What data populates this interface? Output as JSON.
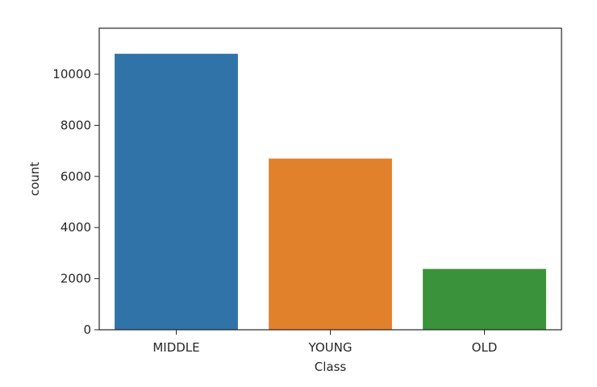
{
  "chart_data": {
    "type": "bar",
    "title": "",
    "xlabel": "Class",
    "ylabel": "count",
    "categories": [
      "MIDDLE",
      "YOUNG",
      "OLD"
    ],
    "values": [
      10800,
      6700,
      2380
    ],
    "colors": [
      "#2f73a8",
      "#e1812c",
      "#3a923a"
    ],
    "ylim": [
      0,
      11800
    ],
    "yticks": [
      0,
      2000,
      4000,
      6000,
      8000,
      10000
    ],
    "grid": false,
    "legend": "none"
  }
}
